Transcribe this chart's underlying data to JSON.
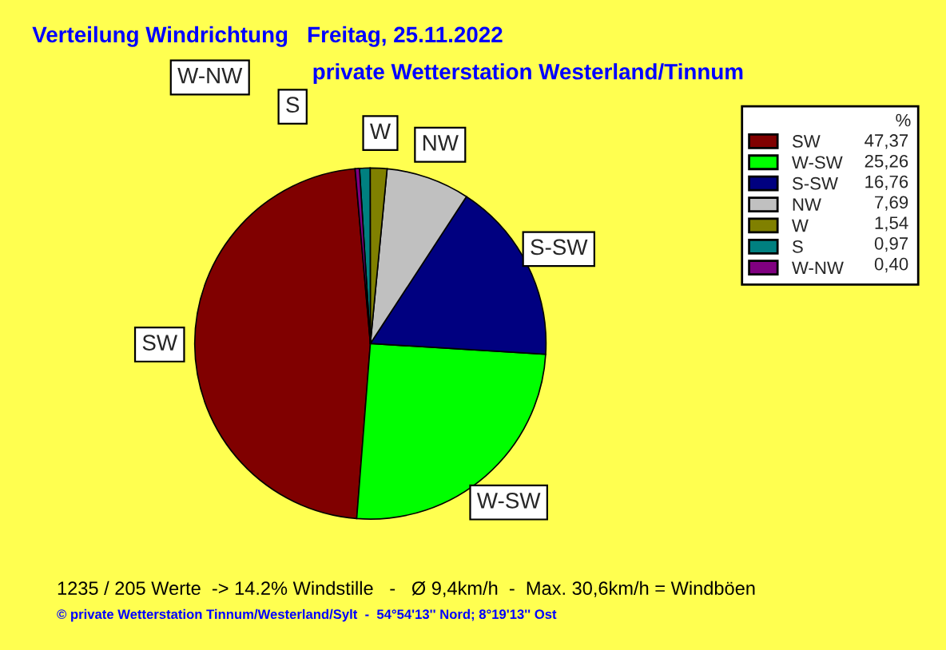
{
  "chart_data": {
    "type": "pie",
    "title": "Verteilung Windrichtung   Freitag, 25.11.2022",
    "subtitle": "private Wetterstation Westerland/Tinnum",
    "categories": [
      "SW",
      "W-SW",
      "S-SW",
      "NW",
      "W",
      "S",
      "W-NW"
    ],
    "values": [
      47.37,
      25.26,
      16.76,
      7.69,
      1.54,
      0.97,
      0.4
    ],
    "colors": [
      "#800000",
      "#00ff00",
      "#000080",
      "#c0c0c0",
      "#808000",
      "#008080",
      "#800080"
    ],
    "value_labels": [
      "47,37",
      "25,26",
      "16,76",
      "7,69",
      "1,54",
      "0,97",
      "0,40"
    ],
    "legend_title": "%",
    "legend": "top right",
    "annotations": [
      "1235 / 205 Werte  -> 14.2% Windstille   -   Ø 9,4km/h  -  Max. 30,6km/h = Windböen",
      "© private Wetterstation Tinnum/Westerland/Sylt  -  54°54'13'' Nord; 8°19'13'' Ost"
    ]
  }
}
